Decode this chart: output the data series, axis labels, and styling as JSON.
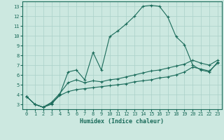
{
  "xlabel": "Humidex (Indice chaleur)",
  "xlim": [
    -0.5,
    23.5
  ],
  "ylim": [
    2.5,
    13.5
  ],
  "xticks": [
    0,
    1,
    2,
    3,
    4,
    5,
    6,
    7,
    8,
    9,
    10,
    11,
    12,
    13,
    14,
    15,
    16,
    17,
    18,
    19,
    20,
    21,
    22,
    23
  ],
  "yticks": [
    3,
    4,
    5,
    6,
    7,
    8,
    9,
    10,
    11,
    12,
    13
  ],
  "bg_color": "#cce8e0",
  "grid_color": "#aad0c8",
  "line_color": "#1a6b5a",
  "line1_x": [
    0,
    1,
    2,
    3,
    4,
    5,
    6,
    7,
    8,
    9,
    10,
    11,
    12,
    13,
    14,
    15,
    16,
    17,
    18,
    19,
    20,
    21,
    22,
    23
  ],
  "line1_y": [
    3.8,
    3.0,
    2.7,
    3.0,
    4.0,
    6.3,
    6.5,
    5.5,
    8.3,
    6.5,
    9.9,
    10.5,
    11.2,
    12.0,
    13.0,
    13.1,
    13.0,
    11.9,
    9.9,
    9.1,
    7.0,
    6.5,
    6.3,
    7.3
  ],
  "line2_x": [
    0,
    1,
    2,
    3,
    4,
    5,
    6,
    7,
    8,
    9,
    10,
    11,
    12,
    13,
    14,
    15,
    16,
    17,
    18,
    19,
    20,
    21,
    22,
    23
  ],
  "line2_y": [
    3.8,
    3.0,
    2.7,
    3.2,
    4.1,
    5.2,
    5.5,
    5.2,
    5.4,
    5.3,
    5.5,
    5.6,
    5.8,
    6.0,
    6.2,
    6.4,
    6.5,
    6.7,
    6.9,
    7.1,
    7.5,
    7.2,
    7.0,
    7.5
  ],
  "line3_x": [
    0,
    1,
    2,
    3,
    4,
    5,
    6,
    7,
    8,
    9,
    10,
    11,
    12,
    13,
    14,
    15,
    16,
    17,
    18,
    19,
    20,
    21,
    22,
    23
  ],
  "line3_y": [
    3.8,
    3.0,
    2.7,
    3.1,
    3.9,
    4.3,
    4.5,
    4.6,
    4.7,
    4.8,
    4.9,
    5.0,
    5.1,
    5.3,
    5.4,
    5.5,
    5.7,
    5.8,
    6.0,
    6.3,
    6.8,
    6.6,
    6.4,
    7.2
  ]
}
